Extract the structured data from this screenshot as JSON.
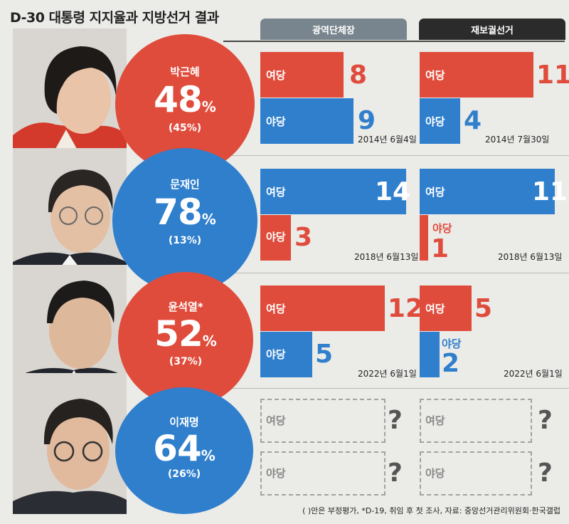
{
  "title": "D-30 대통령 지지율과 지방선거 결과",
  "columns": [
    "광역단체장",
    "재보궐선거"
  ],
  "colors": {
    "ruling": "#e04c3c",
    "opposition": "#2f7fcd",
    "header_dark": "#2b2b2b",
    "header_gray": "#78858e"
  },
  "rows": [
    {
      "name": "박근혜",
      "pct": "48",
      "pct_unit": "%",
      "negative": "(45%)",
      "circle_color": "#e04c3c",
      "gov": {
        "ruling_label": "여당",
        "ruling": "8",
        "opp_label": "야당",
        "opp": "9",
        "date": "2014년 6월4일"
      },
      "by": {
        "ruling_label": "여당",
        "ruling": "11",
        "opp_label": "야당",
        "opp": "4",
        "date": "2014년 7월30일"
      }
    },
    {
      "name": "문재인",
      "pct": "78",
      "pct_unit": "%",
      "negative": "(13%)",
      "circle_color": "#2f7fcd",
      "gov": {
        "ruling_label": "여당",
        "ruling": "14",
        "opp_label": "야당",
        "opp": "3",
        "date": "2018년 6월13일"
      },
      "by": {
        "ruling_label": "여당",
        "ruling": "11",
        "opp_label": "야당",
        "opp": "1",
        "date": "2018년 6월13일"
      }
    },
    {
      "name": "윤석열*",
      "pct": "52",
      "pct_unit": "%",
      "negative": "(37%)",
      "circle_color": "#e04c3c",
      "gov": {
        "ruling_label": "여당",
        "ruling": "12",
        "opp_label": "야당",
        "opp": "5",
        "date": "2022년 6월1일"
      },
      "by": {
        "ruling_label": "여당",
        "ruling": "5",
        "opp_label": "야당",
        "opp": "2",
        "date": "2022년 6월1일"
      }
    },
    {
      "name": "이재명",
      "pct": "64",
      "pct_unit": "%",
      "negative": "(26%)",
      "circle_color": "#2f7fcd",
      "gov": {
        "ruling_label": "여당",
        "ruling": "?",
        "opp_label": "야당",
        "opp": "?"
      },
      "by": {
        "ruling_label": "여당",
        "ruling": "?",
        "opp_label": "야당",
        "opp": "?"
      }
    }
  ],
  "footnote": "( )안은 부정평가, *D-19, 취임 후 첫 조사, 자료: 중앙선거관리위원회·한국갤럽",
  "chart_data": {
    "type": "bar",
    "title": "D-30 대통령 지지율과 지방선거 결과",
    "categories": [
      "박근혜",
      "문재인",
      "윤석열",
      "이재명"
    ],
    "approval_pct": [
      48,
      78,
      52,
      64
    ],
    "disapproval_pct": [
      45,
      13,
      37,
      26
    ],
    "series": [
      {
        "name": "광역단체장 여당",
        "values": [
          8,
          14,
          12,
          null
        ]
      },
      {
        "name": "광역단체장 야당",
        "values": [
          9,
          3,
          5,
          null
        ]
      },
      {
        "name": "재보궐선거 여당",
        "values": [
          11,
          11,
          5,
          null
        ]
      },
      {
        "name": "재보궐선거 야당",
        "values": [
          4,
          1,
          2,
          null
        ]
      }
    ]
  }
}
